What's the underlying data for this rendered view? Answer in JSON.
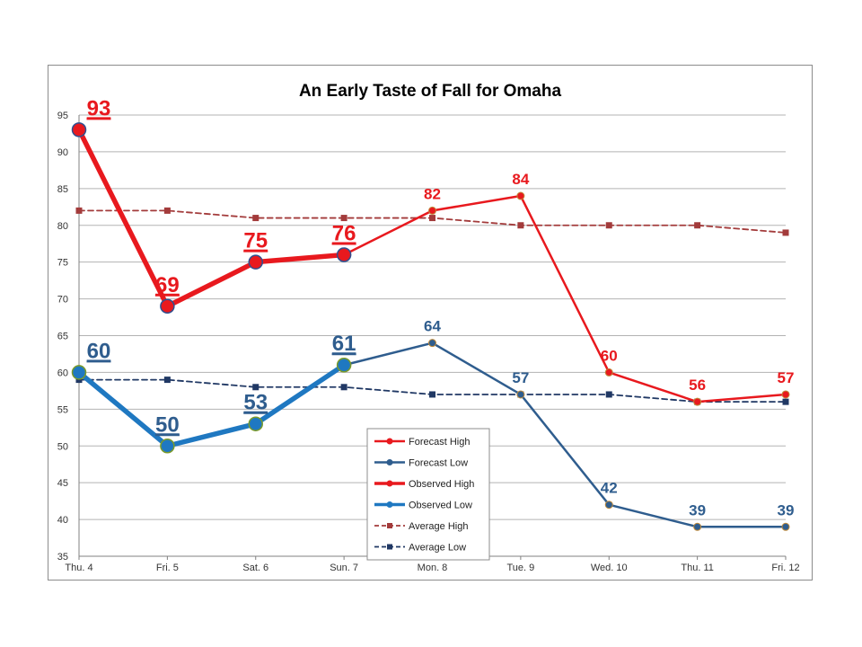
{
  "chart_data": {
    "type": "line",
    "title": "An Early Taste of Fall for Omaha",
    "xlabel": "",
    "ylabel": "",
    "categories": [
      "Thu. 4",
      "Fri. 5",
      "Sat. 6",
      "Sun. 7",
      "Mon. 8",
      "Tue. 9",
      "Wed. 10",
      "Thu. 11",
      "Fri. 12"
    ],
    "ylim": [
      35,
      95
    ],
    "yticks": [
      35,
      40,
      45,
      50,
      55,
      60,
      65,
      70,
      75,
      80,
      85,
      90,
      95
    ],
    "grid": true,
    "legend_position": "bottom-center",
    "series": [
      {
        "name": "Forecast High",
        "color": "#e8191e",
        "style": "solid-thin",
        "values": [
          null,
          null,
          null,
          76,
          82,
          84,
          60,
          56,
          57
        ],
        "labels": [
          null,
          null,
          null,
          null,
          "82",
          "84",
          "60",
          "56",
          "57"
        ]
      },
      {
        "name": "Forecast Low",
        "color": "#2f5d8e",
        "style": "solid-thin",
        "values": [
          null,
          null,
          null,
          61,
          64,
          57,
          42,
          39,
          39
        ],
        "labels": [
          null,
          null,
          null,
          null,
          "64",
          "57",
          "42",
          "39",
          "39"
        ]
      },
      {
        "name": "Observed High",
        "color": "#e8191e",
        "style": "solid-thick",
        "values": [
          93,
          69,
          75,
          76,
          null,
          null,
          null,
          null,
          null
        ],
        "labels": [
          "93",
          "69",
          "75",
          "76",
          null,
          null,
          null,
          null,
          null
        ]
      },
      {
        "name": "Observed Low",
        "color": "#1f78c1",
        "style": "solid-thick",
        "values": [
          60,
          50,
          53,
          61,
          null,
          null,
          null,
          null,
          null
        ],
        "labels": [
          "60",
          "50",
          "53",
          "61",
          null,
          null,
          null,
          null,
          null
        ]
      },
      {
        "name": "Average High",
        "color": "#a33b3b",
        "style": "dashed",
        "values": [
          82,
          82,
          81,
          81,
          81,
          80,
          80,
          80,
          79
        ],
        "labels": [
          null,
          null,
          null,
          null,
          null,
          null,
          null,
          null,
          null
        ]
      },
      {
        "name": "Average Low",
        "color": "#203864",
        "style": "dashed",
        "values": [
          59,
          59,
          58,
          58,
          57,
          57,
          57,
          56,
          56
        ],
        "labels": [
          null,
          null,
          null,
          null,
          null,
          null,
          null,
          null,
          null
        ]
      }
    ]
  }
}
